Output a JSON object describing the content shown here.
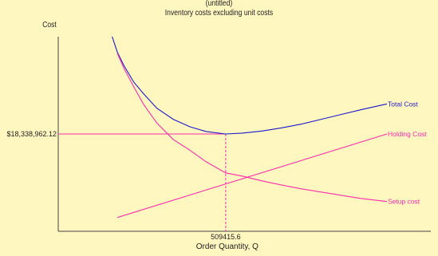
{
  "chart_data": {
    "type": "line",
    "title": "(untitled)",
    "subtitle": "Inventory costs excluding unit costs",
    "ylabel": "Cost",
    "xlabel": "Order Quantity, Q",
    "optimal": {
      "q_label": "509415.6",
      "cost_label": "$18,338,962.12",
      "q": 509415.6,
      "cost": 18338962.12
    },
    "xlim": [
      0,
      1000000
    ],
    "ylim": [
      0,
      36677924.24
    ],
    "grid": false,
    "legend": "inline-right",
    "series": [
      {
        "name": "Total Cost",
        "color": "#1a1acc",
        "x": [
          150000,
          180000,
          200000,
          230000,
          260000,
          300000,
          350000,
          400000,
          450000,
          509415.6,
          560000,
          620000,
          680000,
          740000,
          800000,
          860000,
          920000,
          1000000
        ],
        "y": [
          39300000,
          33700000,
          31200000,
          28100000,
          25900000,
          23200000,
          21100000,
          19700000,
          18800000,
          18338962.12,
          18500000,
          18900000,
          19500000,
          20200000,
          21100000,
          22000000,
          22900000,
          24000000
        ]
      },
      {
        "name": "Holding Cost",
        "color": "#ff2dae",
        "x": [
          180000,
          1000000
        ],
        "y": [
          2600000,
          18338962.12
        ]
      },
      {
        "name": "Setup cost",
        "color": "#ff2dae",
        "x": [
          180000,
          200000,
          230000,
          260000,
          300000,
          350000,
          400000,
          450000,
          509415.6,
          560000,
          620000,
          680000,
          740000,
          800000,
          860000,
          920000,
          1000000
        ],
        "y": [
          33500000,
          30700000,
          27200000,
          23900000,
          20400000,
          17300000,
          15300000,
          13100000,
          11000000,
          10400000,
          9500000,
          8700000,
          8000000,
          7400000,
          6800000,
          6200000,
          5600000
        ]
      }
    ]
  }
}
